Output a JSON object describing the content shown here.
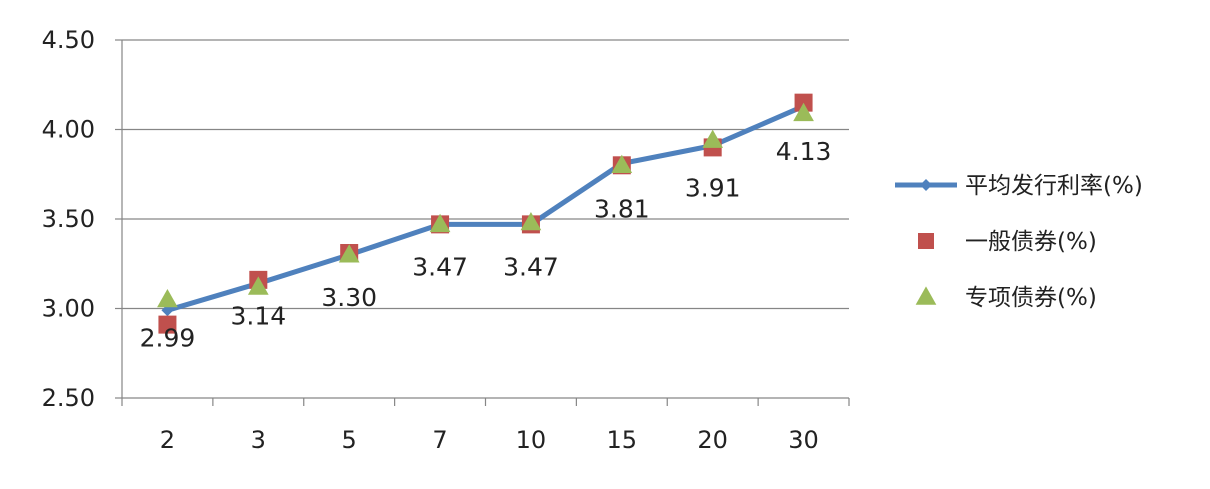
{
  "chart_data": {
    "type": "line",
    "categories": [
      "2",
      "3",
      "5",
      "7",
      "10",
      "15",
      "20",
      "30"
    ],
    "ylim": [
      2.5,
      4.5
    ],
    "yticks": [
      "2.50",
      "3.00",
      "3.50",
      "4.00",
      "4.50"
    ],
    "grid": true,
    "legend_position": "right",
    "series": [
      {
        "name": "平均发行利率(%)",
        "marker": "diamond",
        "style": "line",
        "color": "#4F81BD",
        "values": [
          2.99,
          3.14,
          3.3,
          3.47,
          3.47,
          3.81,
          3.91,
          4.13
        ],
        "data_labels": [
          "2.99",
          "3.14",
          "3.30",
          "3.47",
          "3.47",
          "3.81",
          "3.91",
          "4.13"
        ]
      },
      {
        "name": "一般债券(%)",
        "marker": "square",
        "style": "markers",
        "color": "#C0504D",
        "values": [
          2.91,
          3.16,
          3.31,
          3.47,
          3.47,
          3.8,
          3.9,
          4.15
        ]
      },
      {
        "name": "专项债券(%)",
        "marker": "triangle",
        "style": "markers",
        "color": "#9BBB59",
        "values": [
          3.05,
          3.12,
          3.3,
          3.47,
          3.48,
          3.8,
          3.94,
          4.09
        ]
      }
    ]
  }
}
